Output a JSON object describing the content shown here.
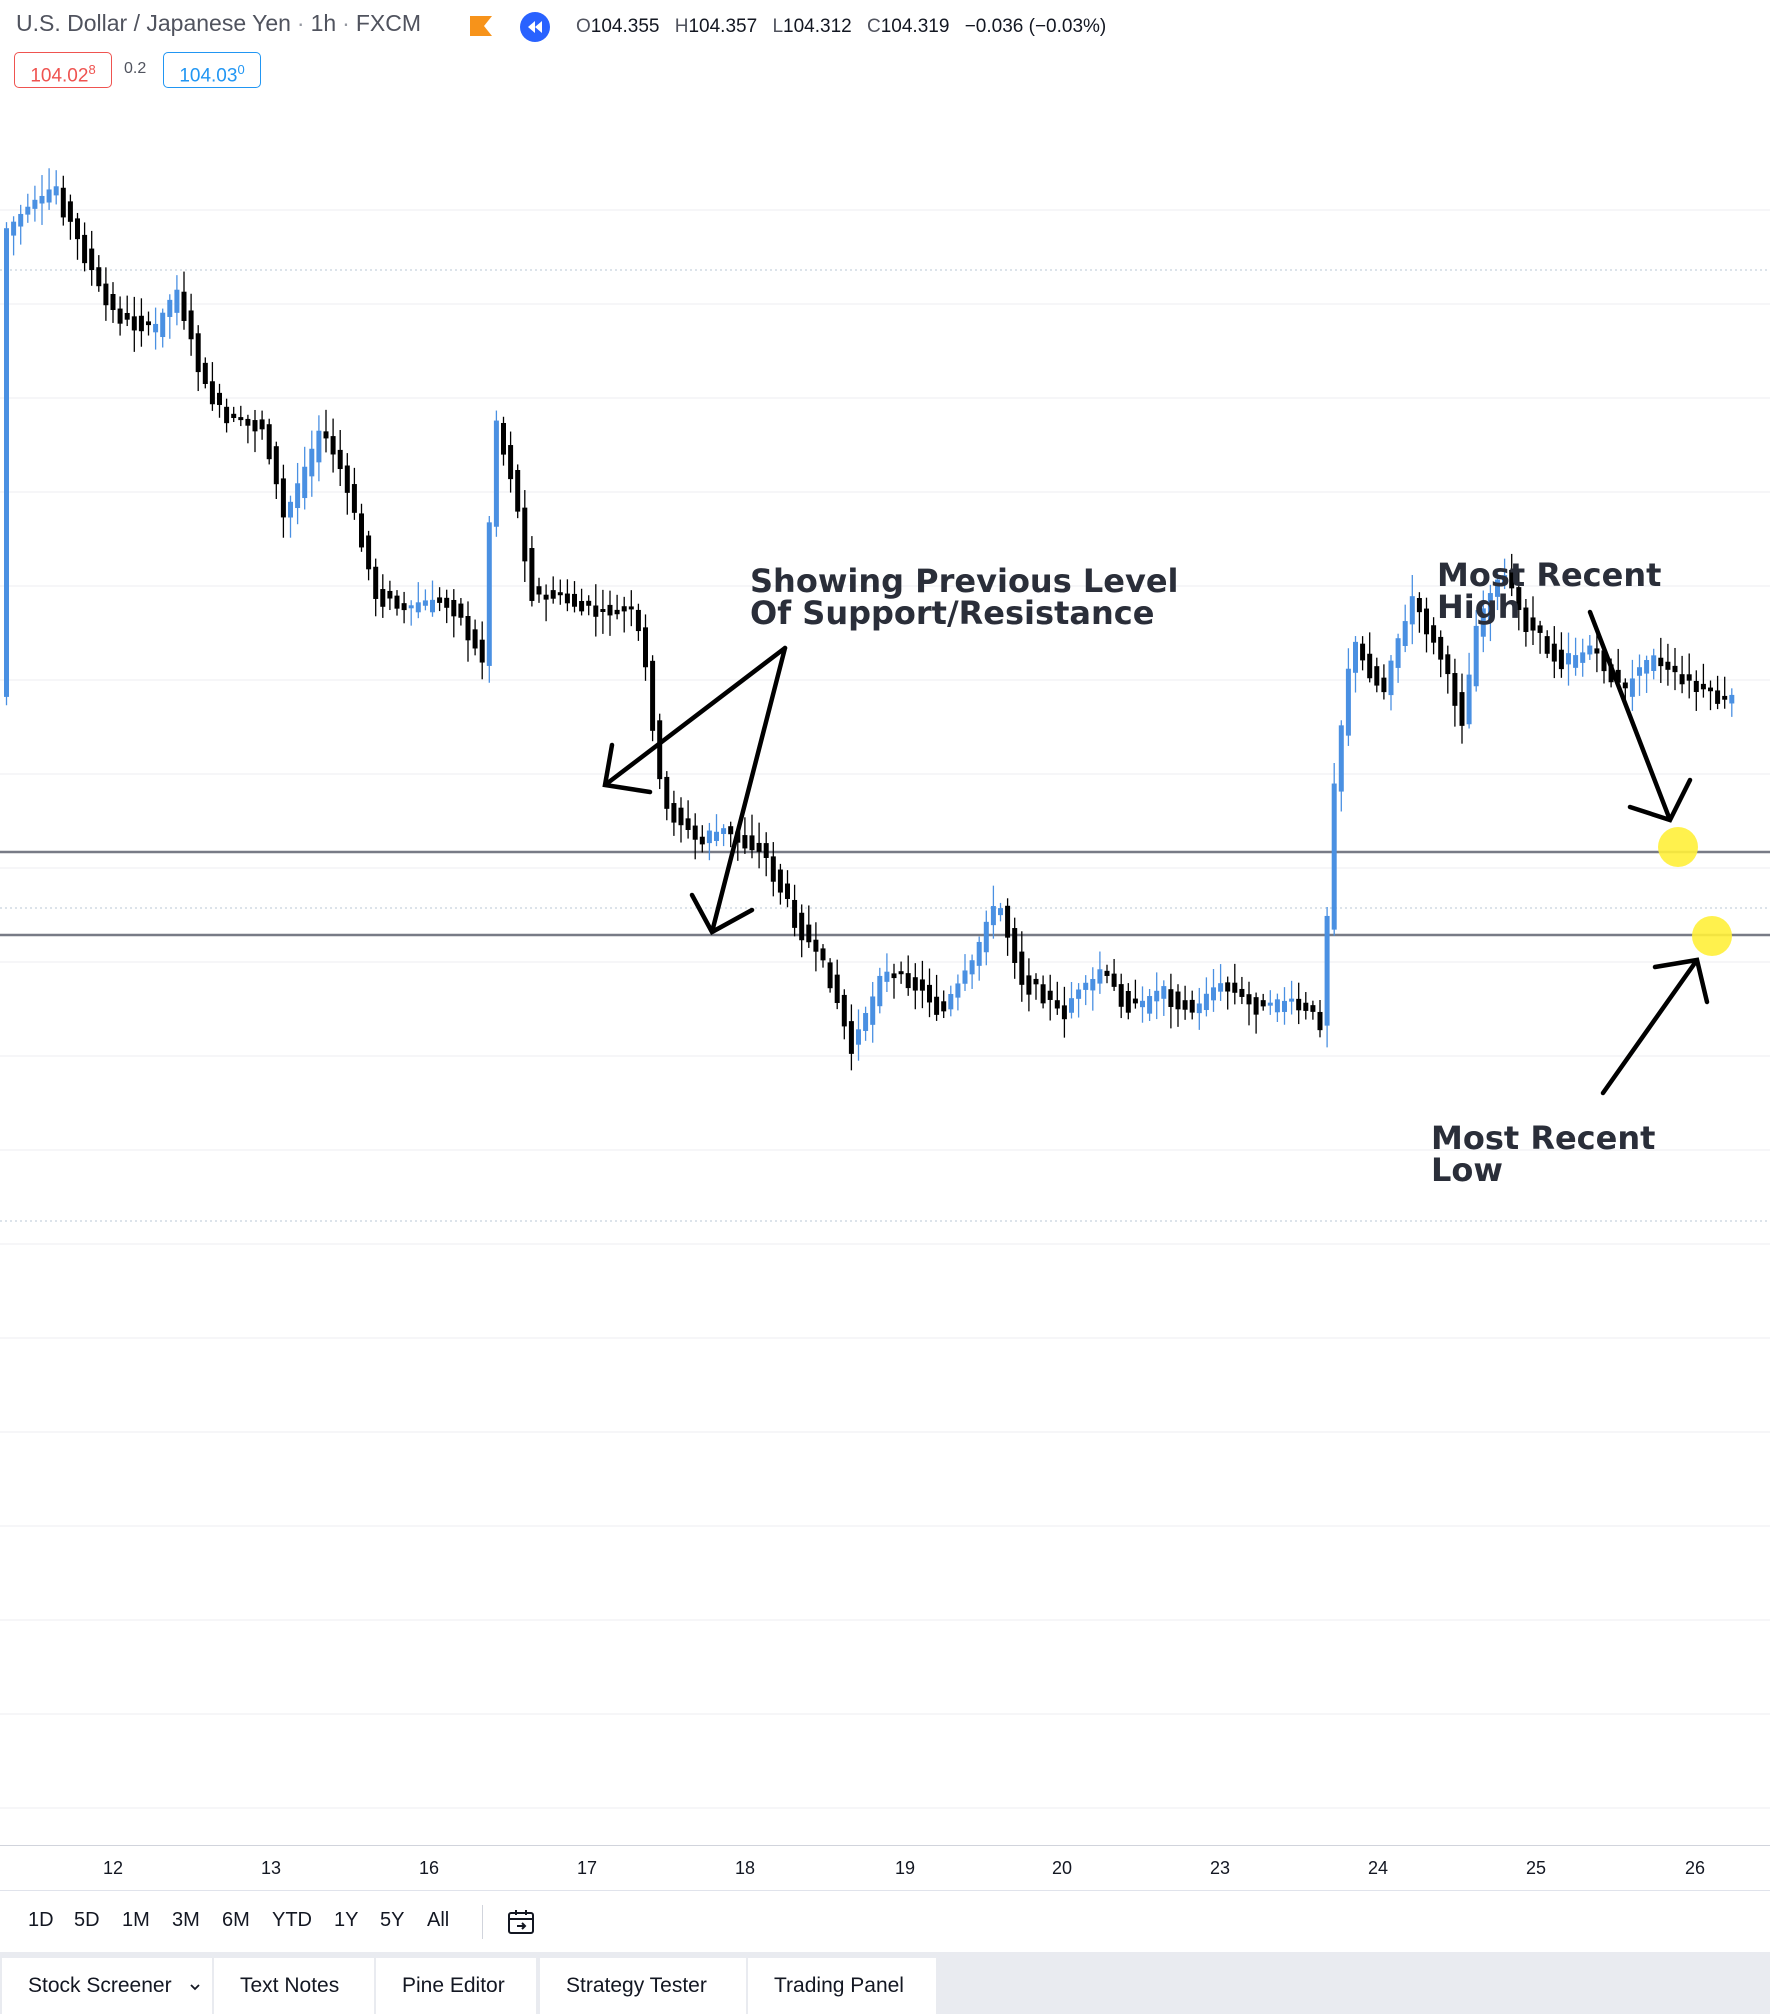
{
  "header": {
    "symbol": "U.S. Dollar / Japanese Yen",
    "interval": "1h",
    "exchange": "FXCM",
    "ohlc": {
      "o": "104.355",
      "h": "104.357",
      "l": "104.312",
      "c": "104.319",
      "change": "−0.036 (−0.03%)"
    },
    "sell_price_main": "104.02",
    "sell_price_sup": "8",
    "spread": "0.2",
    "buy_price_main": "104.03",
    "buy_price_sup": "0",
    "flag_color": "#f7931a",
    "rewind_icon": "rewind-icon"
  },
  "chart_data": {
    "type": "candlestick",
    "x_ticks": [
      "12",
      "13",
      "16",
      "17",
      "18",
      "19",
      "20",
      "23",
      "24",
      "25",
      "26"
    ],
    "up_color": "#4a90e2",
    "down_color": "#000000",
    "annotations": [
      {
        "text_line1": "Showing Previous Level",
        "text_line2": "Of Support/Resistance"
      },
      {
        "text_line1": "Most Recent",
        "text_line2": "High"
      },
      {
        "text_line1": "Most Recent",
        "text_line2": "Low"
      }
    ],
    "highlight_color": "#fff03a"
  },
  "range_bar": {
    "buttons": [
      "1D",
      "5D",
      "1M",
      "3M",
      "6M",
      "YTD",
      "1Y",
      "5Y",
      "All"
    ],
    "compare_icon": "calendar-goto-icon"
  },
  "bottom_tabs": [
    "Stock Screener",
    "Text Notes",
    "Pine Editor",
    "Strategy Tester",
    "Trading Panel"
  ]
}
